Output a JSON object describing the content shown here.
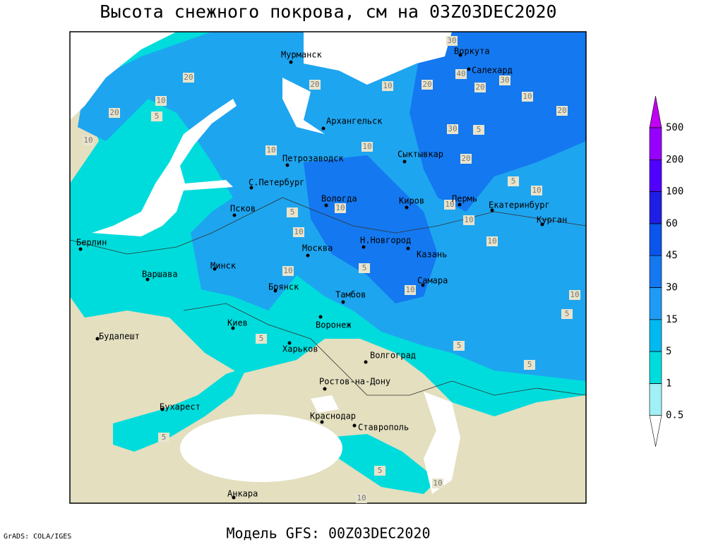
{
  "header": {
    "title": "Высота снежного покрова, см на 03Z03DEC2020"
  },
  "footer": {
    "model": "Модель GFS: 00Z03DEC2020",
    "credit": "GrADS: COLA/IGES"
  },
  "cities": [
    "Мурманск",
    "Воркута",
    "Салехард",
    "Архангельск",
    "Петрозаводск",
    "Сыктывкар",
    "С.Петербург",
    "Вологда",
    "Киров",
    "Пермь",
    "Екатеринбург",
    "Псков",
    "Курган",
    "Берлин",
    "Н.Новгород",
    "Москва",
    "Казань",
    "Минск",
    "Варшава",
    "Самара",
    "Брянск",
    "Тамбов",
    "Киев",
    "Воронеж",
    "Будапешт",
    "Харьков",
    "Волгоград",
    "Ростов-на-Дону",
    "Бухарест",
    "Краснодар",
    "Ставрополь",
    "Анкара"
  ],
  "contour_labels": [
    30,
    20,
    20,
    20,
    10,
    20,
    30,
    10,
    20,
    20,
    10,
    5,
    10,
    40,
    30,
    5,
    10,
    10,
    20,
    5,
    10,
    10,
    5,
    10,
    10,
    10,
    10,
    10,
    10,
    5,
    10,
    5,
    5,
    5,
    5,
    5,
    5,
    10,
    10
  ],
  "colorbar": {
    "levels": [
      0.5,
      1,
      5,
      15,
      30,
      45,
      60,
      100,
      200,
      500
    ],
    "colors": [
      "#ffffff",
      "#a0f0f5",
      "#00dcdc",
      "#00b9f0",
      "#1e9bf5",
      "#1478f0",
      "#0a55eb",
      "#1e1ee6",
      "#5000ff",
      "#9600ff",
      "#c000f0"
    ]
  }
}
